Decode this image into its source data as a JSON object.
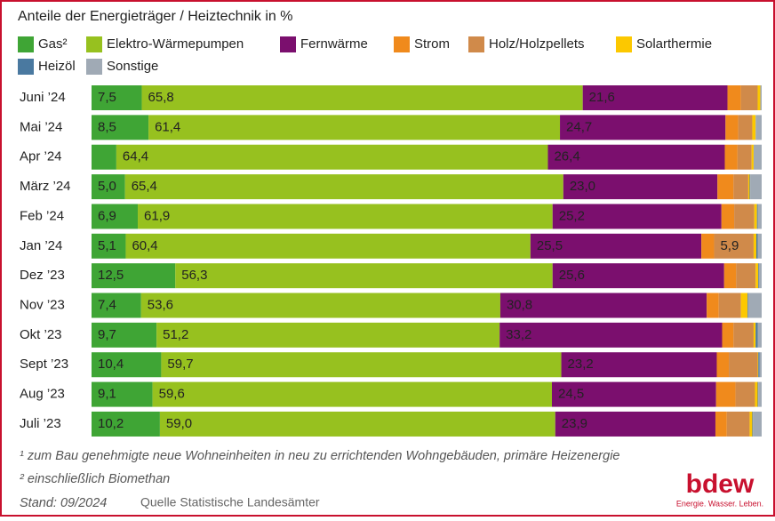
{
  "chart_data": {
    "type": "stacked-bar-horizontal",
    "title": "Anteile der Energieträger / Heiztechnik in %",
    "categories": [
      "Juni ’24",
      "Mai ’24",
      "Apr ’24",
      "März ’24",
      "Feb ’24",
      "Jan ’24",
      "Dez ’23",
      "Nov ’23",
      "Okt ’23",
      "Sept ’23",
      "Aug ’23",
      "Juli ’23"
    ],
    "xlim": [
      0,
      100
    ],
    "series": [
      {
        "name": "Gas²",
        "color": "#3fa535",
        "values": [
          7.5,
          8.5,
          3.7,
          5.0,
          6.9,
          5.1,
          12.5,
          7.4,
          9.7,
          10.4,
          9.1,
          10.2
        ],
        "value_labels": [
          "7,5",
          "8,5",
          null,
          "5,0",
          "6,9",
          "5,1",
          "12,5",
          "7,4",
          "9,7",
          "10,4",
          "9,1",
          "10,2"
        ]
      },
      {
        "name": "Elektro-Wärmepumpen",
        "color": "#97c11f",
        "values": [
          65.8,
          61.4,
          64.4,
          65.4,
          61.9,
          60.4,
          56.3,
          53.6,
          51.2,
          59.7,
          59.6,
          59.0
        ],
        "value_labels": [
          "65,8",
          "61,4",
          "64,4",
          "65,4",
          "61,9",
          "60,4",
          "56,3",
          "53,6",
          "51,2",
          "59,7",
          "59,6",
          "59,0"
        ]
      },
      {
        "name": "Fernwärme",
        "color": "#7b0f6e",
        "values": [
          21.6,
          24.7,
          26.4,
          23.0,
          25.2,
          25.5,
          25.6,
          30.8,
          33.2,
          23.2,
          24.5,
          23.9
        ],
        "value_labels": [
          "21,6",
          "24,7",
          "26,4",
          "23,0",
          "25,2",
          "25,5",
          "25,6",
          "30,8",
          "33,2",
          "23,2",
          "24,5",
          "23,9"
        ]
      },
      {
        "name": "Strom",
        "color": "#f08a1c",
        "values": [
          2.0,
          1.9,
          1.9,
          2.4,
          1.9,
          1.9,
          1.8,
          1.8,
          1.7,
          1.8,
          2.9,
          1.7
        ]
      },
      {
        "name": "Holz/Holzpellets",
        "color": "#d08a4a",
        "values": [
          2.5,
          2.1,
          2.1,
          2.2,
          3.0,
          5.9,
          2.9,
          3.3,
          3.0,
          4.3,
          2.9,
          3.4
        ],
        "value_labels": [
          null,
          null,
          null,
          null,
          null,
          "5,9",
          null,
          null,
          null,
          null,
          null,
          null
        ]
      },
      {
        "name": "Solarthermie",
        "color": "#fcc800",
        "values": [
          0.4,
          0.5,
          0.3,
          0.2,
          0.4,
          0.4,
          0.4,
          1.0,
          0.3,
          0.1,
          0.4,
          0.4
        ]
      },
      {
        "name": "Heizöl",
        "color": "#4a79a0",
        "values": [
          0.0,
          0.0,
          0.0,
          0.1,
          0.1,
          0.2,
          0.1,
          0.1,
          0.3,
          0.2,
          0.1,
          0.1
        ]
      },
      {
        "name": "Sonstige",
        "color": "#a0aab5",
        "values": [
          0.2,
          0.9,
          1.2,
          1.7,
          0.6,
          0.6,
          0.4,
          2.0,
          0.6,
          0.3,
          0.5,
          1.3
        ]
      }
    ]
  },
  "footnotes": [
    "¹ zum Bau genehmigte neue Wohneinheiten in neu zu errichtenden Wohngebäuden, primäre Heizenergie",
    "² einschließlich Biomethan"
  ],
  "stand": "Stand: 09/2024",
  "source": "Quelle Statistische Landesämter",
  "logo": {
    "name": "bdew",
    "slogan": "Energie. Wasser. Leben."
  }
}
